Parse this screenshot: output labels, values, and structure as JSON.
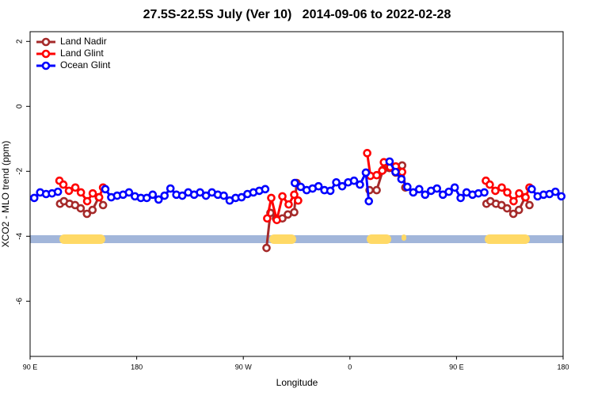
{
  "chart_data": {
    "type": "line",
    "title": "27.5S-22.5S July (Ver 10)   2014-09-06 to 2022-02-28",
    "x_label": "Longitude",
    "y_label": "XCO2 - MLO trend (ppm)",
    "xlim": [
      90,
      540
    ],
    "xticks": [
      {
        "value": 90,
        "label": "90 E"
      },
      180,
      {
        "value": 270,
        "label": "90 W"
      },
      {
        "value": 360,
        "label": "0"
      },
      {
        "value": 450,
        "label": "90 E"
      },
      {
        "value": 540,
        "label": "180"
      }
    ],
    "ylim": [
      -7.7,
      2.3
    ],
    "yticks": [
      2,
      0,
      -2,
      -4,
      -6
    ],
    "legend": "top-left",
    "series": [
      {
        "name": "Land Nadir",
        "color": "#a52a2a",
        "x": [
          115.3,
          118.6,
          123.3,
          128,
          132.7,
          138,
          142.7,
          148,
          151.6,
          null,
          289.6,
          292.9,
          297.6,
          303,
          307.6,
          313,
          315,
          null,
          376.6,
          382.6,
          388,
          393.4,
          398.7,
          404.1,
          406.8,
          null,
          475.3,
          478.6,
          483.3,
          488,
          492.7,
          498,
          502.7,
          508,
          511.6
        ],
        "values": [
          -3.0,
          -2.92,
          -3.0,
          -3.04,
          -3.14,
          -3.31,
          -3.19,
          -2.8,
          -3.04,
          null,
          -4.36,
          -3.28,
          -3.45,
          -3.45,
          -3.33,
          -3.26,
          -2.36,
          null,
          -2.58,
          -2.58,
          -1.95,
          -1.9,
          -2.04,
          -1.82,
          -2.5,
          null,
          -3.0,
          -2.92,
          -3.0,
          -3.04,
          -3.14,
          -3.31,
          -3.19,
          -2.8,
          -3.04
        ]
      },
      {
        "name": "Land Glint",
        "color": "#ff0000",
        "x": [
          114.8,
          118.1,
          122.8,
          128.2,
          132.9,
          138.2,
          142.9,
          148.3,
          151.6,
          null,
          290.2,
          293.6,
          298.3,
          303,
          308.3,
          313,
          316.3,
          null,
          374.6,
          377.3,
          382.6,
          387.3,
          388.7,
          394,
          398.7,
          404.1,
          null,
          474.8,
          478.1,
          482.8,
          488.2,
          492.9,
          498.2,
          502.9,
          508.3,
          511.6
        ],
        "values": [
          -2.29,
          -2.41,
          -2.6,
          -2.5,
          -2.65,
          -2.92,
          -2.68,
          -2.8,
          -2.5,
          null,
          -3.45,
          -2.82,
          -3.5,
          -2.77,
          -3.02,
          -2.72,
          -2.9,
          null,
          -1.44,
          -2.14,
          -2.12,
          -1.98,
          -1.72,
          -1.87,
          -1.85,
          -2.02,
          null,
          -2.29,
          -2.41,
          -2.6,
          -2.5,
          -2.65,
          -2.92,
          -2.68,
          -2.8,
          -2.5
        ]
      },
      {
        "name": "Ocean Glint",
        "color": "#0000ff",
        "x": [
          93.5,
          98.5,
          103.5,
          108.5,
          113.5,
          null,
          153.5,
          158.5,
          163.5,
          168.5,
          173.5,
          178.5,
          183.5,
          188.5,
          193.5,
          198.5,
          203.5,
          208.5,
          213.5,
          218.5,
          223.5,
          228.5,
          233.5,
          238.5,
          243.5,
          248.5,
          253.5,
          258.5,
          263.5,
          268.5,
          273.5,
          278.5,
          283.5,
          288.5,
          null,
          313.5,
          318.5,
          323.5,
          328.5,
          333.5,
          338.5,
          343.5,
          348.5,
          353.5,
          358.5,
          363.5,
          368.5,
          373.5,
          376,
          null,
          393.5,
          398.5,
          403.5,
          408.5,
          413.5,
          418.5,
          423.5,
          428.5,
          433.5,
          438.5,
          443.5,
          448.5,
          453.5,
          458.5,
          463.5,
          468.5,
          473.5,
          null,
          513.5,
          518.5,
          523.5,
          528.5,
          533.5,
          538.5
        ],
        "values": [
          -2.82,
          -2.65,
          -2.7,
          -2.68,
          -2.63,
          null,
          -2.55,
          -2.8,
          -2.75,
          -2.72,
          -2.65,
          -2.77,
          -2.82,
          -2.82,
          -2.72,
          -2.87,
          -2.75,
          -2.53,
          -2.72,
          -2.75,
          -2.65,
          -2.72,
          -2.65,
          -2.75,
          -2.65,
          -2.72,
          -2.75,
          -2.9,
          -2.82,
          -2.8,
          -2.7,
          -2.65,
          -2.6,
          -2.55,
          null,
          -2.36,
          -2.48,
          -2.58,
          -2.53,
          -2.46,
          -2.58,
          -2.6,
          -2.34,
          -2.46,
          -2.34,
          -2.29,
          -2.41,
          -2.04,
          -2.92,
          null,
          -1.7,
          -2.02,
          -2.24,
          -2.48,
          -2.65,
          -2.55,
          -2.72,
          -2.6,
          -2.53,
          -2.72,
          -2.63,
          -2.5,
          -2.82,
          -2.65,
          -2.72,
          -2.68,
          -2.65,
          null,
          -2.55,
          -2.77,
          -2.72,
          -2.7,
          -2.63,
          -2.77
        ]
      }
    ]
  }
}
